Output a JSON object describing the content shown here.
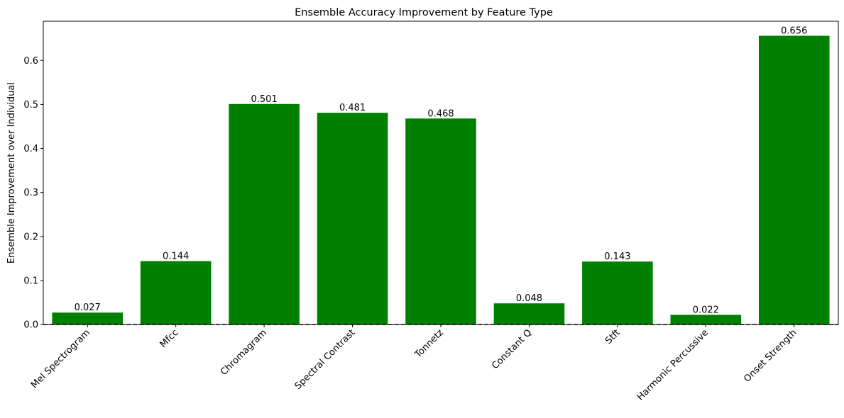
{
  "chart_data": {
    "type": "bar",
    "title": "Ensemble Accuracy Improvement by Feature Type",
    "xlabel": "",
    "ylabel": "Ensemble Improvement over Individual",
    "categories": [
      "Mel Spectrogram",
      "Mfcc",
      "Chromagram",
      "Spectral Contrast",
      "Tonnetz",
      "Constant Q",
      "Stft",
      "Harmonic Percussive",
      "Onset Strength"
    ],
    "values": [
      0.027,
      0.144,
      0.501,
      0.481,
      0.468,
      0.048,
      0.143,
      0.022,
      0.656
    ],
    "value_labels": [
      "0.027",
      "0.144",
      "0.501",
      "0.481",
      "0.468",
      "0.048",
      "0.143",
      "0.022",
      "0.656"
    ],
    "ylim": [
      0,
      0.689
    ],
    "yticks": [
      0.0,
      0.1,
      0.2,
      0.3,
      0.4,
      0.5,
      0.6
    ],
    "ytick_labels": [
      "0.0",
      "0.1",
      "0.2",
      "0.3",
      "0.4",
      "0.5",
      "0.6"
    ],
    "bar_color": "#008000",
    "reference_line": {
      "y": 0,
      "style": "dashed",
      "color": "#000000"
    },
    "grid": false,
    "legend": "none"
  }
}
